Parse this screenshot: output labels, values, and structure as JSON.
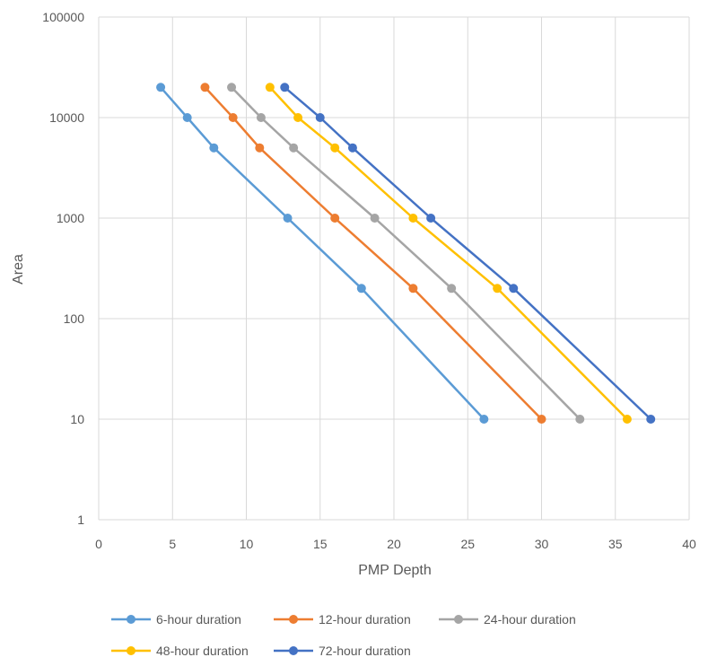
{
  "chart_data": {
    "type": "scatter",
    "title": "",
    "xlabel": "PMP Depth",
    "ylabel": "Area",
    "xlim": [
      0,
      40
    ],
    "ylim": [
      1,
      100000
    ],
    "y_scale": "log",
    "x_ticks": [
      "0",
      "5",
      "10",
      "15",
      "20",
      "25",
      "30",
      "35",
      "40"
    ],
    "y_ticks": [
      "1",
      "10",
      "100",
      "1000",
      "10000",
      "100000"
    ],
    "grid": true,
    "legend_position": "bottom",
    "series": [
      {
        "name": "6-hour duration",
        "color": "#5B9BD5",
        "x": [
          4.2,
          6.0,
          7.8,
          12.8,
          17.8,
          26.1
        ],
        "y": [
          20000,
          10000,
          5000,
          1000,
          200,
          10
        ]
      },
      {
        "name": "12-hour duration",
        "color": "#ED7D31",
        "x": [
          7.2,
          9.1,
          10.9,
          16.0,
          21.3,
          30.0
        ],
        "y": [
          20000,
          10000,
          5000,
          1000,
          200,
          10
        ]
      },
      {
        "name": "24-hour duration",
        "color": "#A5A5A5",
        "x": [
          9.0,
          11.0,
          13.2,
          18.7,
          23.9,
          32.6
        ],
        "y": [
          20000,
          10000,
          5000,
          1000,
          200,
          10
        ]
      },
      {
        "name": "48-hour duration",
        "color": "#FFC000",
        "x": [
          11.6,
          13.5,
          16.0,
          21.3,
          27.0,
          35.8
        ],
        "y": [
          20000,
          10000,
          5000,
          1000,
          200,
          10
        ]
      },
      {
        "name": "72-hour duration",
        "color": "#4472C4",
        "x": [
          12.6,
          15.0,
          17.2,
          22.5,
          28.1,
          37.4
        ],
        "y": [
          20000,
          10000,
          5000,
          1000,
          200,
          10
        ]
      }
    ]
  }
}
